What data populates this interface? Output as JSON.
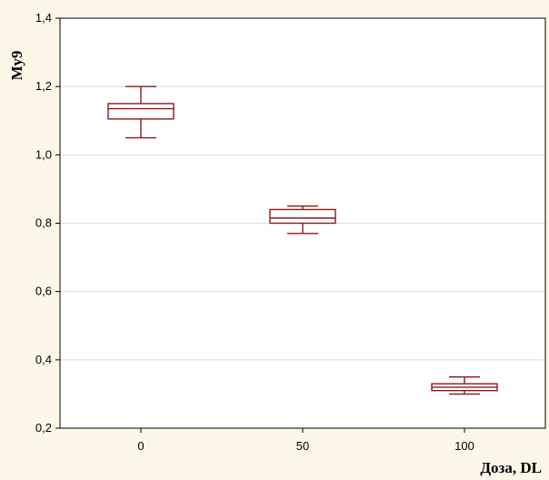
{
  "chart_data": {
    "type": "box",
    "xlabel": "Доза, DL",
    "ylabel": "Му9",
    "categories": [
      "0",
      "50",
      "100"
    ],
    "ylim": [
      0.2,
      1.4
    ],
    "yticks": [
      "0,2",
      "0,4",
      "0,6",
      "0,8",
      "1,0",
      "1,2",
      "1,4"
    ],
    "grid": true,
    "boxes": [
      {
        "category": "0",
        "min": 1.05,
        "q1": 1.105,
        "median": 1.135,
        "q3": 1.15,
        "max": 1.2
      },
      {
        "category": "50",
        "min": 0.77,
        "q1": 0.8,
        "median": 0.815,
        "q3": 0.84,
        "max": 0.85
      },
      {
        "category": "100",
        "min": 0.3,
        "q1": 0.31,
        "median": 0.32,
        "q3": 0.33,
        "max": 0.35
      }
    ],
    "box_color": "#8b1a1a"
  }
}
